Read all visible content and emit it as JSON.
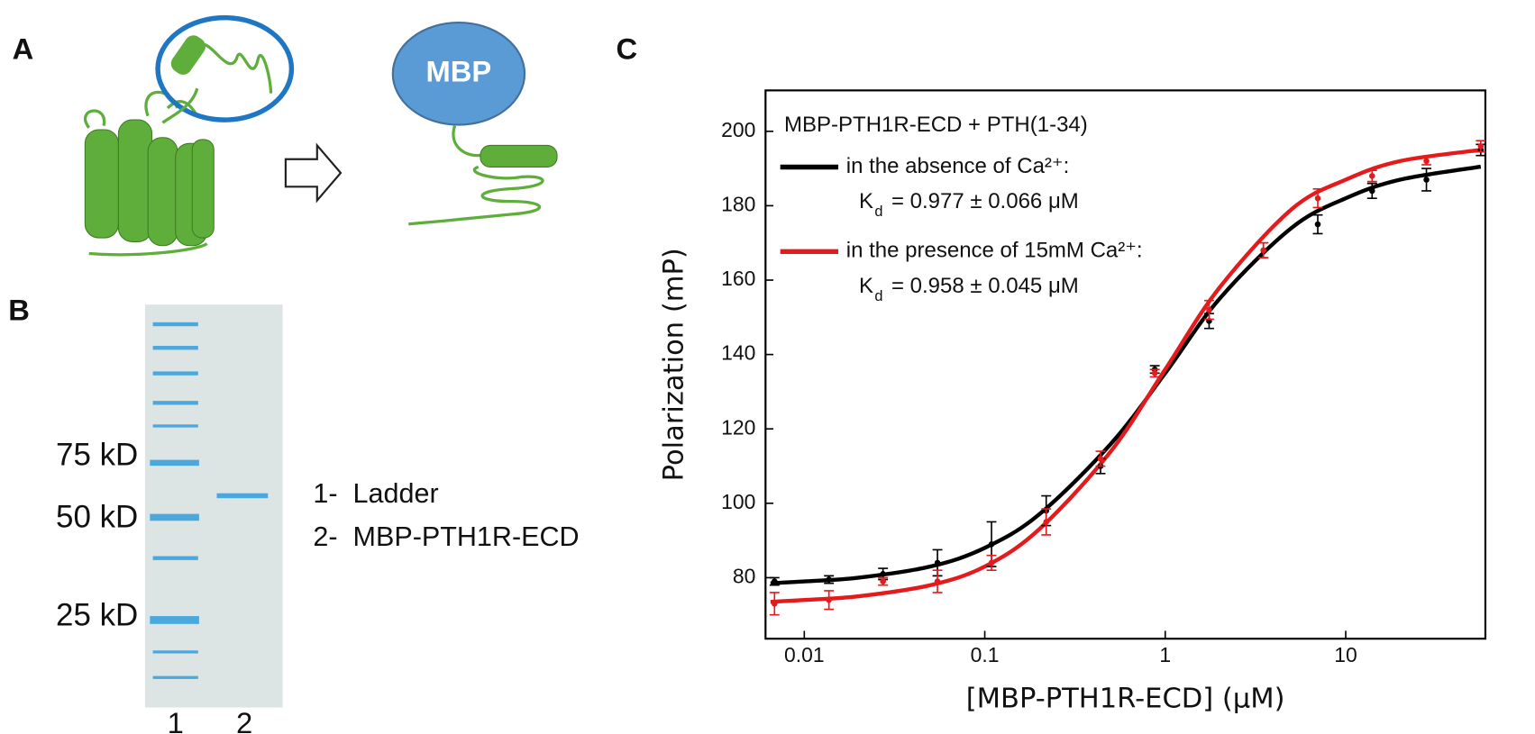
{
  "panel_labels": {
    "a": "A",
    "b": "B",
    "c": "C"
  },
  "diagram": {
    "mbp": "MBP"
  },
  "gel": {
    "markers": [
      "75 kD",
      "50 kD",
      "25 kD"
    ],
    "lanes": [
      "1",
      "2"
    ],
    "legend": [
      "1-  Ladder",
      "2-  MBP-PTH1R-ECD"
    ]
  },
  "chart_data": {
    "type": "scatter",
    "title": "MBP-PTH1R-ECD + PTH(1-34)",
    "x_label": "[MBP-PTH1R-ECD] (μM)",
    "y_label": "Polarization (mP)",
    "log_x": true,
    "xlim": [
      0.0061,
      59.4
    ],
    "xticks": [
      0.01,
      0.1,
      1,
      10
    ],
    "ylim": [
      63.6,
      211
    ],
    "yticks": [
      80,
      100,
      120,
      140,
      160,
      180,
      200
    ],
    "x": [
      0.00684,
      0.0137,
      0.0273,
      0.0547,
      0.109,
      0.219,
      0.438,
      0.875,
      1.75,
      3.5,
      7,
      14,
      28,
      56
    ],
    "fit_x": [
      0.0065,
      0.01,
      0.02,
      0.05,
      0.1,
      0.2,
      0.5,
      1,
      2,
      5,
      10,
      20,
      56
    ],
    "series": [
      {
        "name": "in the absence of Ca²⁺:",
        "kd_symbol": "K",
        "kd_sub": "d",
        "kd_text": "= 0.977 ± 0.066 μM",
        "color": "#000000",
        "values": [
          79,
          79.5,
          81,
          84,
          89,
          98,
          110,
          136,
          149,
          168,
          175,
          184,
          187,
          195
        ],
        "errors": [
          1,
          1,
          1.5,
          3.5,
          6,
          4,
          2,
          1,
          2,
          2,
          2.5,
          2,
          3,
          1.5
        ],
        "fit": [
          78.5,
          79,
          80,
          83,
          88,
          97,
          116,
          135,
          155,
          174,
          182,
          187,
          190.5
        ]
      },
      {
        "name": "in the presence of 15mM Ca²⁺:",
        "kd_symbol": "K",
        "kd_sub": "d",
        "kd_text": "= 0.958 ± 0.045 μM",
        "color": "#e41a1c",
        "values": [
          73,
          74,
          79,
          79,
          84,
          95,
          112,
          135,
          152,
          168,
          182,
          188,
          192,
          196
        ],
        "errors": [
          3,
          2.5,
          1,
          3,
          2,
          3.5,
          2,
          1,
          2.5,
          2,
          2.5,
          1.5,
          1,
          1.5
        ],
        "fit": [
          73.5,
          74,
          75,
          78,
          83,
          93,
          114,
          136,
          158,
          179,
          187,
          192,
          195
        ]
      }
    ]
  }
}
